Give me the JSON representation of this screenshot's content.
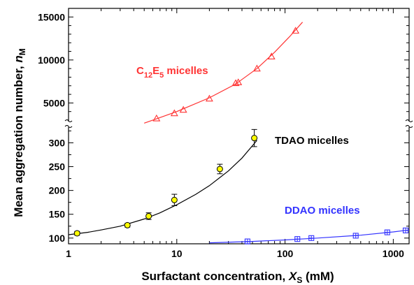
{
  "chart_data": {
    "type": "scatter",
    "x_scale": "log",
    "y_axis": "broken",
    "xlim": [
      1,
      1400
    ],
    "xlabel_parts": {
      "text": "Surfactant concentration, ",
      "symbol": "X",
      "subscript": "S",
      "unit": " (mM)"
    },
    "ylabel_parts": {
      "text": "Mean aggregation number, ",
      "symbol": "n",
      "subscript": "M"
    },
    "x_ticks": [
      1,
      10,
      100,
      1000
    ],
    "x_tick_labels": [
      "1",
      "10",
      "100",
      "1000"
    ],
    "y_upper": {
      "range": [
        3000,
        16000
      ],
      "ticks": [
        5000,
        10000,
        15000
      ],
      "tick_labels": [
        "5000",
        "10000",
        "15000"
      ]
    },
    "y_lower": {
      "range": [
        88,
        330
      ],
      "ticks": [
        100,
        150,
        200,
        250,
        300
      ],
      "tick_labels": [
        "100",
        "150",
        "200",
        "250",
        "300"
      ]
    },
    "grid": false,
    "series": [
      {
        "name_parts": {
          "prefix": "C",
          "sub1": "12",
          "mid": "E",
          "sub2": "5",
          "suffix": " micelles"
        },
        "segment": "upper",
        "color": "#ff3333",
        "marker": "triangle",
        "points": [
          [
            6.5,
            3200
          ],
          [
            9.5,
            3800
          ],
          [
            11.5,
            4200
          ],
          [
            20,
            5500
          ],
          [
            35,
            7300
          ],
          [
            37,
            7400
          ],
          [
            55,
            9000
          ],
          [
            75,
            10400
          ],
          [
            125,
            13400
          ]
        ],
        "fit": [
          [
            5,
            2650
          ],
          [
            7,
            3300
          ],
          [
            10,
            4000
          ],
          [
            20,
            5600
          ],
          [
            35,
            7200
          ],
          [
            55,
            9000
          ],
          [
            80,
            10900
          ],
          [
            110,
            12700
          ],
          [
            145,
            14400
          ]
        ]
      },
      {
        "name": "TDAO micelles",
        "segment": "lower",
        "color": "#000000",
        "marker": "circle",
        "marker_fill": "#ffff00",
        "points": [
          [
            1.2,
            110
          ],
          [
            3.5,
            127
          ],
          [
            5.5,
            146
          ],
          [
            9.5,
            180
          ],
          [
            25,
            245
          ],
          [
            52,
            310
          ]
        ],
        "errors": [
          4,
          4,
          7,
          12,
          10,
          18
        ],
        "fit": [
          [
            1,
            107
          ],
          [
            1.5,
            112
          ],
          [
            2,
            117
          ],
          [
            3,
            125
          ],
          [
            5,
            140
          ],
          [
            7,
            153
          ],
          [
            10,
            170
          ],
          [
            15,
            192
          ],
          [
            20,
            210
          ],
          [
            30,
            241
          ],
          [
            40,
            268
          ],
          [
            55,
            305
          ]
        ]
      },
      {
        "name": "DDAO micelles",
        "segment": "lower",
        "color": "#3333ff",
        "marker": "square",
        "points": [
          [
            45,
            93
          ],
          [
            130,
            98
          ],
          [
            175,
            100
          ],
          [
            450,
            105
          ],
          [
            880,
            112
          ],
          [
            1300,
            116
          ]
        ],
        "fit": [
          [
            20,
            90
          ],
          [
            50,
            93
          ],
          [
            100,
            96
          ],
          [
            200,
            100
          ],
          [
            500,
            106
          ],
          [
            1000,
            113
          ],
          [
            1400,
            117
          ]
        ]
      }
    ]
  }
}
